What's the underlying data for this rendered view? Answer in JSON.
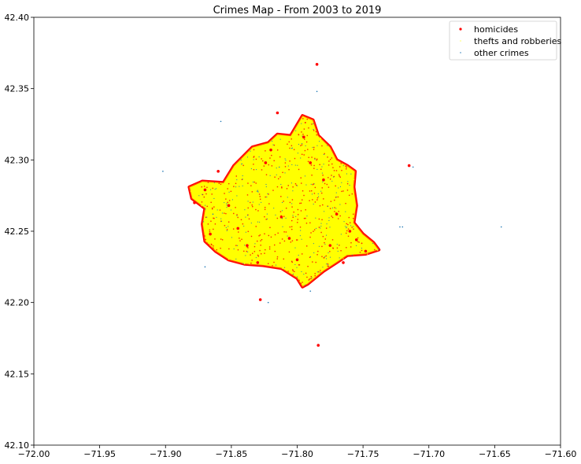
{
  "chart_data": {
    "type": "scatter",
    "title": "Crimes Map - From 2003 to 2019",
    "xlabel": "",
    "ylabel": "",
    "xlim": [
      -72.0,
      -71.6
    ],
    "ylim": [
      42.1,
      42.4
    ],
    "xticks": [
      -72.0,
      -71.95,
      -71.9,
      -71.85,
      -71.8,
      -71.75,
      -71.7,
      -71.65,
      -71.6
    ],
    "xtick_labels": [
      "−72.00",
      "−71.95",
      "−71.90",
      "−71.85",
      "−71.80",
      "−71.75",
      "−71.70",
      "−71.65",
      "−71.60"
    ],
    "yticks": [
      42.1,
      42.15,
      42.2,
      42.25,
      42.3,
      42.35,
      42.4
    ],
    "ytick_labels": [
      "42.10",
      "42.15",
      "42.20",
      "42.25",
      "42.30",
      "42.35",
      "42.40"
    ],
    "grid": false,
    "legend_position": "top-right",
    "series": [
      {
        "name": "homicides",
        "color": "#ff0000",
        "marker": "circle",
        "points": [
          [
            -71.87,
            42.279
          ],
          [
            -71.86,
            42.292
          ],
          [
            -71.852,
            42.268
          ],
          [
            -71.845,
            42.252
          ],
          [
            -71.838,
            42.24
          ],
          [
            -71.83,
            42.228
          ],
          [
            -71.828,
            42.202
          ],
          [
            -71.824,
            42.298
          ],
          [
            -71.82,
            42.307
          ],
          [
            -71.815,
            42.333
          ],
          [
            -71.812,
            42.26
          ],
          [
            -71.806,
            42.245
          ],
          [
            -71.8,
            42.23
          ],
          [
            -71.795,
            42.316
          ],
          [
            -71.79,
            42.298
          ],
          [
            -71.785,
            42.367
          ],
          [
            -71.784,
            42.17
          ],
          [
            -71.78,
            42.286
          ],
          [
            -71.775,
            42.24
          ],
          [
            -71.77,
            42.262
          ],
          [
            -71.765,
            42.228
          ],
          [
            -71.76,
            42.25
          ],
          [
            -71.755,
            42.244
          ],
          [
            -71.748,
            42.236
          ],
          [
            -71.715,
            42.296
          ],
          [
            -71.878,
            42.27
          ],
          [
            -71.866,
            42.248
          ]
        ]
      },
      {
        "name": "thefts and robberies",
        "color": "#ffff00",
        "marker": "point",
        "points": []
      },
      {
        "name": "other crimes",
        "color": "#1f77b4",
        "marker": "point",
        "points": [
          [
            -71.902,
            42.292
          ],
          [
            -71.858,
            42.327
          ],
          [
            -71.87,
            42.225
          ],
          [
            -71.822,
            42.2
          ],
          [
            -71.645,
            42.253
          ],
          [
            -71.722,
            42.253
          ],
          [
            -71.72,
            42.253
          ],
          [
            -71.712,
            42.295
          ],
          [
            -71.785,
            42.348
          ],
          [
            -71.79,
            42.208
          ],
          [
            -71.864,
            42.262
          ]
        ]
      }
    ]
  }
}
